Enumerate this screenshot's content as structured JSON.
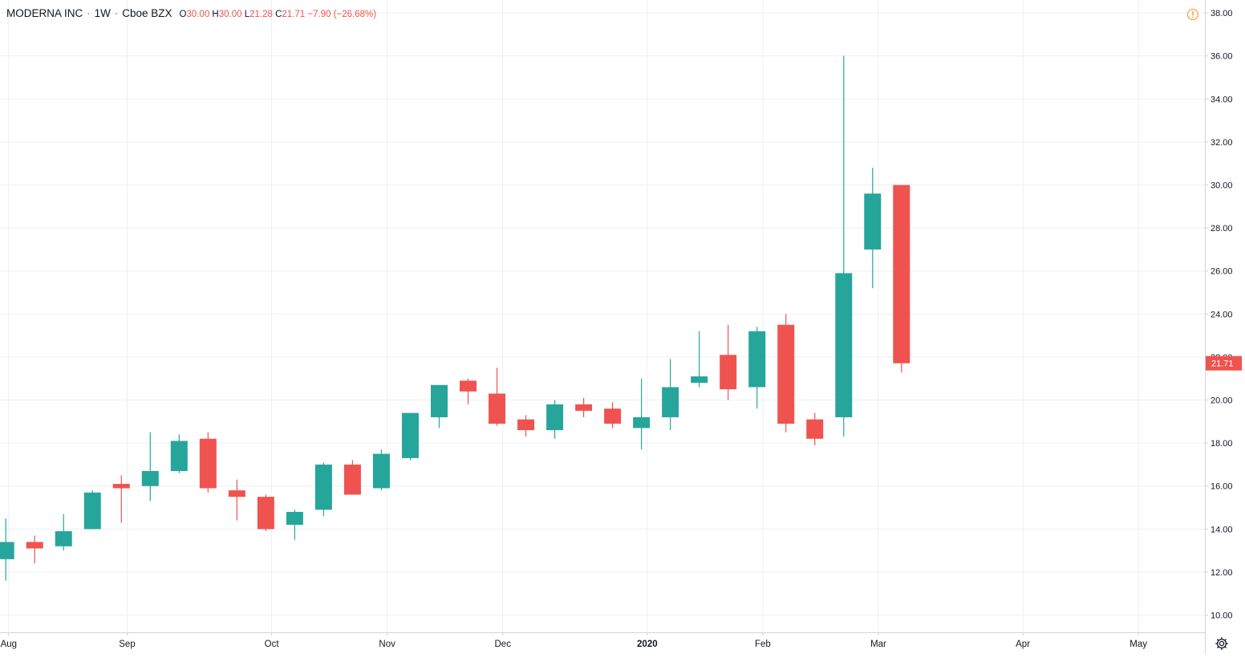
{
  "legend": {
    "symbol": "MODERNA INC",
    "interval": "1W",
    "exchange": "Cboe BZX",
    "open_key": "O",
    "open": "30.00",
    "high_key": "H",
    "high": "30.00",
    "low_key": "L",
    "low": "21.28",
    "close_key": "C",
    "close": "21.71",
    "change": "−7.90 (−26.68%)"
  },
  "icons": {
    "alert": "warning-circle-icon",
    "settings": "gear-icon"
  },
  "colors": {
    "up": "#26a69a",
    "down": "#ef5350",
    "grid": "#eceff2",
    "axis_text": "#131722",
    "axis_line": "#d1d4dc",
    "alert": "#f5a441"
  },
  "chart_data": {
    "type": "candlestick",
    "title": "MODERNA INC · 1W · Cboe BZX",
    "y_axis": {
      "range": [
        9.2,
        38.6
      ],
      "ticks": [
        10,
        12,
        14,
        16,
        18,
        20,
        22,
        24,
        26,
        28,
        30,
        32,
        34,
        36,
        38
      ],
      "tick_labels": [
        "10.00",
        "12.00",
        "14.00",
        "16.00",
        "18.00",
        "20.00",
        "22.00",
        "24.00",
        "26.00",
        "28.00",
        "30.00",
        "32.00",
        "34.00",
        "36.00",
        "38.00"
      ],
      "last_price_label": "21.71"
    },
    "x_axis": {
      "labels": [
        "Aug",
        "Sep",
        "Oct",
        "Nov",
        "Dec",
        "2020",
        "Feb",
        "Mar",
        "Apr",
        "May"
      ],
      "label_weeks": [
        0.1,
        4.2,
        9.2,
        13.2,
        17.2,
        22.2,
        26.2,
        30.2,
        35.2,
        39.2
      ],
      "bold_labels": [
        "2020"
      ],
      "week_range": [
        -0.2,
        41.5
      ]
    },
    "candles": [
      {
        "o": 12.6,
        "h": 14.5,
        "l": 11.6,
        "c": 13.4
      },
      {
        "o": 13.4,
        "h": 13.7,
        "l": 12.4,
        "c": 13.1
      },
      {
        "o": 13.2,
        "h": 14.7,
        "l": 13.0,
        "c": 13.9
      },
      {
        "o": 14.0,
        "h": 15.8,
        "l": 14.0,
        "c": 15.7
      },
      {
        "o": 16.1,
        "h": 16.5,
        "l": 14.3,
        "c": 15.9
      },
      {
        "o": 16.0,
        "h": 18.5,
        "l": 15.3,
        "c": 16.7
      },
      {
        "o": 16.7,
        "h": 18.4,
        "l": 16.6,
        "c": 18.1
      },
      {
        "o": 18.2,
        "h": 18.5,
        "l": 15.7,
        "c": 15.9
      },
      {
        "o": 15.8,
        "h": 16.3,
        "l": 14.4,
        "c": 15.5
      },
      {
        "o": 15.5,
        "h": 15.6,
        "l": 13.9,
        "c": 14.0
      },
      {
        "o": 14.2,
        "h": 14.9,
        "l": 13.5,
        "c": 14.8
      },
      {
        "o": 14.9,
        "h": 17.1,
        "l": 14.6,
        "c": 17.0
      },
      {
        "o": 17.0,
        "h": 17.2,
        "l": 15.6,
        "c": 15.6
      },
      {
        "o": 15.9,
        "h": 17.7,
        "l": 15.8,
        "c": 17.5
      },
      {
        "o": 17.3,
        "h": 19.4,
        "l": 17.2,
        "c": 19.4
      },
      {
        "o": 19.2,
        "h": 20.7,
        "l": 18.7,
        "c": 20.7
      },
      {
        "o": 20.9,
        "h": 21.0,
        "l": 19.8,
        "c": 20.4
      },
      {
        "o": 20.3,
        "h": 21.5,
        "l": 18.8,
        "c": 18.9
      },
      {
        "o": 19.1,
        "h": 19.3,
        "l": 18.3,
        "c": 18.6
      },
      {
        "o": 18.6,
        "h": 20.0,
        "l": 18.2,
        "c": 19.8
      },
      {
        "o": 19.8,
        "h": 20.1,
        "l": 19.2,
        "c": 19.5
      },
      {
        "o": 19.6,
        "h": 19.9,
        "l": 18.7,
        "c": 18.9
      },
      {
        "o": 18.7,
        "h": 21.0,
        "l": 17.7,
        "c": 19.2
      },
      {
        "o": 19.2,
        "h": 21.9,
        "l": 18.6,
        "c": 20.6
      },
      {
        "o": 20.8,
        "h": 23.2,
        "l": 20.6,
        "c": 21.1
      },
      {
        "o": 22.1,
        "h": 23.5,
        "l": 20.0,
        "c": 20.5
      },
      {
        "o": 20.6,
        "h": 23.4,
        "l": 19.6,
        "c": 23.2
      },
      {
        "o": 23.5,
        "h": 24.0,
        "l": 18.5,
        "c": 18.9
      },
      {
        "o": 19.1,
        "h": 19.4,
        "l": 17.9,
        "c": 18.2
      },
      {
        "o": 19.2,
        "h": 36.0,
        "l": 18.3,
        "c": 25.9
      },
      {
        "o": 27.0,
        "h": 30.8,
        "l": 25.2,
        "c": 29.6
      },
      {
        "o": 30.0,
        "h": 30.0,
        "l": 21.28,
        "c": 21.71
      }
    ]
  }
}
